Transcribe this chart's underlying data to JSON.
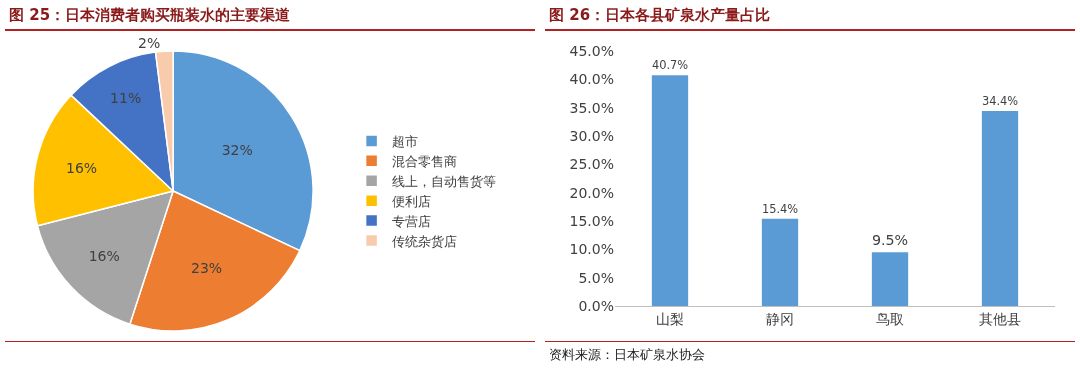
{
  "chart_data": [
    {
      "type": "pie",
      "title": "图 25：日本消费者购买瓶装水的主要渠道",
      "categories": [
        "超市",
        "混合零售商",
        "线上，自动售货等",
        "便利店",
        "专营店",
        "传统杂货店"
      ],
      "values": [
        32,
        23,
        16,
        16,
        11,
        2
      ],
      "value_labels": [
        "32%",
        "23%",
        "16%",
        "16%",
        "11%",
        "2%"
      ],
      "colors": [
        "#5b9bd5",
        "#ed7d31",
        "#a5a5a5",
        "#ffc000",
        "#4472c4",
        "#f8cbad"
      ],
      "legend": "right"
    },
    {
      "type": "bar",
      "title": "图 26：日本各县矿泉水产量占比",
      "categories": [
        "山梨",
        "静冈",
        "鸟取",
        "其他县"
      ],
      "values": [
        40.7,
        15.4,
        9.5,
        34.4
      ],
      "value_labels": [
        "40.7%",
        "15.4%",
        "9.5%",
        "34.4%"
      ],
      "color": "#5b9bd5",
      "ylim": [
        0,
        45
      ],
      "yticks": [
        {
          "value": 0,
          "label": "0.0%"
        },
        {
          "value": 5,
          "label": "5.0%"
        },
        {
          "value": 10,
          "label": "10.0%"
        },
        {
          "value": 15,
          "label": "15.0%"
        },
        {
          "value": 20,
          "label": "20.0%"
        },
        {
          "value": 25,
          "label": "25.0%"
        },
        {
          "value": 30,
          "label": "30.0%"
        },
        {
          "value": 35,
          "label": "35.0%"
        },
        {
          "value": 40,
          "label": "40.0%"
        },
        {
          "value": 45,
          "label": "45.0%"
        }
      ],
      "grid": false,
      "annotations": [
        "资料来源：日本矿泉水协会"
      ]
    }
  ]
}
